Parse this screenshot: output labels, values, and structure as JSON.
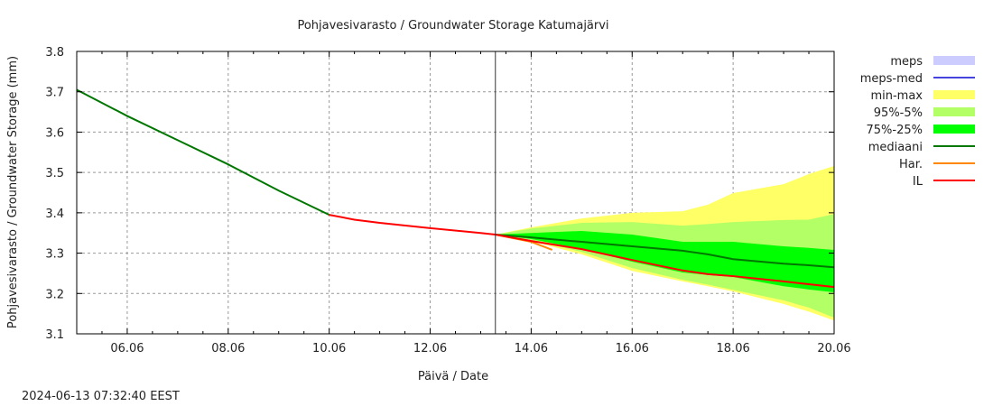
{
  "chart_data": {
    "type": "area",
    "title": "Pohjavesivarasto / Groundwater Storage   Katumajärvi",
    "xlabel": "Päivä / Date",
    "ylabel": "Pohjavesivarasto / Groundwater Storage (mm)",
    "timestamp": "2024-06-13 07:32:40 EEST",
    "xlim": [
      "2024-06-05 00:00",
      "2024-06-20 00:00"
    ],
    "ylim": [
      3.1,
      3.8
    ],
    "yticks": [
      "3.1",
      "3.2",
      "3.3",
      "3.4",
      "3.5",
      "3.6",
      "3.7",
      "3.8"
    ],
    "xticks": [
      {
        "t": "2024-06-06 00:00",
        "label": "06.06"
      },
      {
        "t": "2024-06-08 00:00",
        "label": "08.06"
      },
      {
        "t": "2024-06-10 00:00",
        "label": "10.06"
      },
      {
        "t": "2024-06-12 00:00",
        "label": "12.06"
      },
      {
        "t": "2024-06-14 00:00",
        "label": "14.06"
      },
      {
        "t": "2024-06-16 00:00",
        "label": "16.06"
      },
      {
        "t": "2024-06-18 00:00",
        "label": "18.06"
      },
      {
        "t": "2024-06-20 00:00",
        "label": "20.06"
      }
    ],
    "grid": true,
    "forecast_start": "2024-06-13 07:00",
    "legend_position": "right",
    "legend": [
      {
        "label": "meps",
        "kind": "band",
        "color": "#ccccff"
      },
      {
        "label": "meps-med",
        "kind": "line",
        "color": "#4444dd"
      },
      {
        "label": "min-max",
        "kind": "band",
        "color": "#ffff66"
      },
      {
        "label": "95%-5%",
        "kind": "band",
        "color": "#b3ff66"
      },
      {
        "label": "75%-25%",
        "kind": "band",
        "color": "#00ff00"
      },
      {
        "label": "mediaani",
        "kind": "line",
        "color": "#007700"
      },
      {
        "label": "Har.",
        "kind": "line",
        "color": "#ff8800"
      },
      {
        "label": "IL",
        "kind": "line",
        "color": "#ff0000"
      }
    ],
    "observed_green": {
      "color": "#007700",
      "x": [
        "2024-06-05 00:00",
        "2024-06-06 00:00",
        "2024-06-07 00:00",
        "2024-06-08 00:00",
        "2024-06-09 00:00",
        "2024-06-10 00:00"
      ],
      "y": [
        3.705,
        3.64,
        3.58,
        3.52,
        3.455,
        3.395
      ]
    },
    "observed_red": {
      "color": "#ff0000",
      "x": [
        "2024-06-10 00:00",
        "2024-06-10 12:00",
        "2024-06-11 00:00",
        "2024-06-12 00:00",
        "2024-06-13 00:00",
        "2024-06-13 07:00"
      ],
      "y": [
        3.395,
        3.383,
        3.375,
        3.362,
        3.35,
        3.346
      ]
    },
    "forecast_x": [
      "2024-06-13 07:00",
      "2024-06-14 00:00",
      "2024-06-15 00:00",
      "2024-06-16 00:00",
      "2024-06-17 00:00",
      "2024-06-17 12:00",
      "2024-06-18 00:00",
      "2024-06-19 00:00",
      "2024-06-19 12:00",
      "2024-06-20 00:00"
    ],
    "bands": [
      {
        "name": "min-max",
        "color": "#ffff66",
        "upper": [
          3.346,
          3.364,
          3.386,
          3.4,
          3.404,
          3.42,
          3.449,
          3.471,
          3.496,
          3.516
        ],
        "lower": [
          3.346,
          3.33,
          3.297,
          3.256,
          3.23,
          3.218,
          3.205,
          3.174,
          3.155,
          3.133
        ]
      },
      {
        "name": "95%-5%",
        "color": "#b3ff66",
        "upper": [
          3.346,
          3.361,
          3.375,
          3.377,
          3.368,
          3.372,
          3.377,
          3.382,
          3.383,
          3.397
        ],
        "lower": [
          3.346,
          3.332,
          3.303,
          3.263,
          3.234,
          3.222,
          3.209,
          3.183,
          3.165,
          3.14
        ]
      },
      {
        "name": "75%-25%",
        "color": "#00ff00",
        "upper": [
          3.346,
          3.35,
          3.355,
          3.346,
          3.328,
          3.328,
          3.328,
          3.317,
          3.313,
          3.308
        ],
        "lower": [
          3.346,
          3.335,
          3.31,
          3.279,
          3.252,
          3.246,
          3.241,
          3.218,
          3.21,
          3.203
        ]
      }
    ],
    "lines": [
      {
        "name": "mediaani",
        "color": "#007700",
        "y": [
          3.346,
          3.339,
          3.328,
          3.317,
          3.306,
          3.297,
          3.285,
          3.274,
          3.27,
          3.265
        ]
      },
      {
        "name": "IL",
        "color": "#ff0000",
        "y": [
          3.346,
          3.33,
          3.31,
          3.283,
          3.257,
          3.248,
          3.243,
          3.23,
          3.223,
          3.216
        ]
      }
    ],
    "har": {
      "name": "Har.",
      "color": "#ff8800",
      "x": [
        "2024-06-13 07:00",
        "2024-06-14 00:00",
        "2024-06-14 10:00"
      ],
      "y": [
        3.346,
        3.328,
        3.308
      ]
    }
  }
}
